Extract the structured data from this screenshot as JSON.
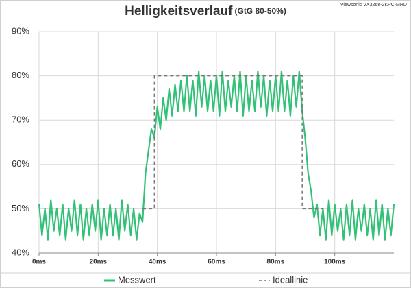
{
  "chart_data": {
    "type": "line",
    "title": "Helligkeitsverlauf",
    "subtitle": "(GtG 80-50%)",
    "annotation": "Viewsonic VX3268-2KPC-MHD",
    "xlim": [
      0,
      120
    ],
    "xticks": [
      {
        "value": 0,
        "label": "0ms"
      },
      {
        "value": 20,
        "label": "20ms"
      },
      {
        "value": 40,
        "label": "40ms"
      },
      {
        "value": 60,
        "label": "60ms"
      },
      {
        "value": 80,
        "label": "80ms"
      },
      {
        "value": 100,
        "label": "100ms"
      }
    ],
    "ylim": [
      40,
      90
    ],
    "yticks": [
      {
        "value": 40,
        "label": "40%"
      },
      {
        "value": 50,
        "label": "50%"
      },
      {
        "value": 60,
        "label": "60%"
      },
      {
        "value": 70,
        "label": "70%"
      },
      {
        "value": 80,
        "label": "80%"
      },
      {
        "value": 90,
        "label": "90%"
      }
    ],
    "grid": true,
    "legend": "bottom",
    "series": [
      {
        "name": "Messwert",
        "color": "#33c178",
        "dash": false,
        "x": [
          0,
          1,
          2,
          3,
          4,
          5,
          6,
          7,
          8,
          9,
          10,
          11,
          12,
          13,
          14,
          15,
          16,
          17,
          18,
          19,
          20,
          21,
          22,
          23,
          24,
          25,
          26,
          27,
          28,
          29,
          30,
          31,
          32,
          33,
          34,
          35,
          36,
          37,
          38,
          39,
          40,
          41,
          42,
          43,
          44,
          45,
          46,
          47,
          48,
          49,
          50,
          51,
          52,
          53,
          54,
          55,
          56,
          57,
          58,
          59,
          60,
          61,
          62,
          63,
          64,
          65,
          66,
          67,
          68,
          69,
          70,
          71,
          72,
          73,
          74,
          75,
          76,
          77,
          78,
          79,
          80,
          81,
          82,
          83,
          84,
          85,
          86,
          87,
          88,
          89,
          90,
          91,
          92,
          93,
          94,
          95,
          96,
          97,
          98,
          99,
          100,
          101,
          102,
          103,
          104,
          105,
          106,
          107,
          108,
          109,
          110,
          111,
          112,
          113,
          114,
          115,
          116,
          117,
          118,
          119,
          120
        ],
        "values": [
          51,
          44,
          50,
          43,
          52,
          45,
          50,
          44,
          51,
          43,
          50,
          45,
          52,
          44,
          51,
          43,
          50,
          44,
          51,
          45,
          52,
          43,
          50,
          44,
          51,
          44,
          50,
          43,
          52,
          45,
          51,
          44,
          50,
          43,
          49,
          47,
          58,
          63,
          68,
          66,
          73,
          68,
          75,
          70,
          77,
          71,
          78,
          72,
          79,
          72,
          80,
          72,
          79,
          71,
          81,
          73,
          80,
          72,
          79,
          72,
          80,
          71,
          81,
          72,
          79,
          73,
          80,
          72,
          81,
          71,
          80,
          72,
          79,
          72,
          81,
          73,
          80,
          71,
          79,
          72,
          80,
          72,
          81,
          72,
          79,
          71,
          80,
          73,
          81,
          72,
          66,
          58,
          54,
          48,
          51,
          44,
          50,
          43,
          52,
          44,
          51,
          45,
          50,
          43,
          51,
          44,
          52,
          43,
          50,
          45,
          51,
          44,
          50,
          43,
          52,
          44,
          51,
          43,
          50,
          44,
          51
        ]
      },
      {
        "name": "Ideallinie",
        "color": "#777777",
        "dash": true,
        "x": [
          35,
          39,
          39,
          89,
          89,
          96
        ],
        "values": [
          50,
          50,
          80,
          80,
          50,
          50
        ]
      }
    ]
  }
}
